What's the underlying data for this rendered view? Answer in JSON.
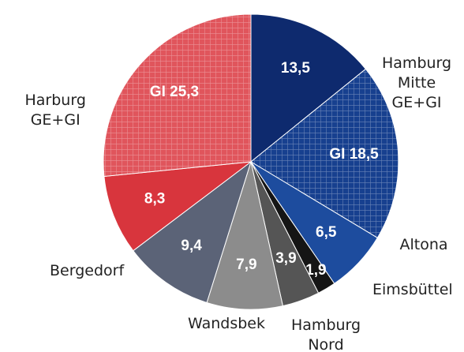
{
  "chart_data": {
    "type": "pie",
    "categories": [
      "Hamburg Mitte GE+GI",
      null,
      "Altona",
      "Eimsbüttel",
      "Hamburg Nord",
      "Wandsbek",
      "Bergedorf",
      null,
      "Harburg GE+GI"
    ],
    "values": [
      13.5,
      18.5,
      6.5,
      1.9,
      3.9,
      7.9,
      9.4,
      8.3,
      25.3
    ],
    "value_labels": [
      "13,5",
      "GI 18,5",
      "6,5",
      "1,9",
      "3,9",
      "7,9",
      "9,4",
      "8,3",
      "GI 25,3"
    ],
    "colors": [
      "#0e2a6e",
      "#17408f",
      "#1d4c9e",
      "#151515",
      "#555555",
      "#8c8c8c",
      "#5b6377",
      "#d8353d",
      "#e0555c"
    ],
    "hatched": [
      false,
      true,
      false,
      false,
      false,
      false,
      false,
      false,
      true
    ]
  }
}
